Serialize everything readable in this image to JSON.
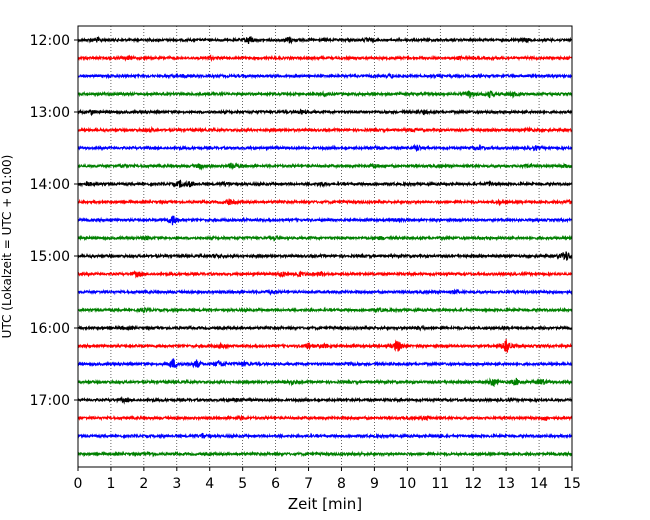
{
  "chart_data": {
    "type": "line",
    "title": "",
    "xlabel": "Zeit  [min]",
    "ylabel": "UTC (Lokalzeit = UTC + 01:00)",
    "xlim": [
      0,
      15
    ],
    "x_ticks": [
      0,
      1,
      2,
      3,
      4,
      5,
      6,
      7,
      8,
      9,
      10,
      11,
      12,
      13,
      14,
      15
    ],
    "y_ticks": [
      "12:00",
      "13:00",
      "14:00",
      "15:00",
      "16:00",
      "17:00"
    ],
    "grid": "vertical-dotted",
    "trace_colors": [
      "#000000",
      "#ff0000",
      "#0000ff",
      "#008000"
    ],
    "series": [
      {
        "start": "12:00",
        "events": [
          [
            0.6,
            2.2
          ],
          [
            5.2,
            4.5
          ],
          [
            6.4,
            3.5
          ],
          [
            8.8,
            2
          ],
          [
            13.6,
            1.8
          ]
        ]
      },
      {
        "start": "12:15",
        "events": [
          [
            1.5,
            1.6
          ],
          [
            4,
            1.5
          ],
          [
            11.6,
            1.5
          ]
        ]
      },
      {
        "start": "12:30",
        "events": [
          [
            3.2,
            1.4
          ],
          [
            9.5,
            1.5
          ]
        ]
      },
      {
        "start": "12:45",
        "events": [
          [
            7.5,
            1.5
          ],
          [
            11.9,
            4
          ],
          [
            12.5,
            3
          ],
          [
            13.2,
            2.5
          ]
        ]
      },
      {
        "start": "13:00",
        "events": [
          [
            0.4,
            2
          ],
          [
            6.8,
            1.8
          ],
          [
            10.5,
            1.6
          ]
        ]
      },
      {
        "start": "13:15",
        "events": [
          [
            2.2,
            1.4
          ],
          [
            10.2,
            1.5
          ],
          [
            13.7,
            1.6
          ]
        ]
      },
      {
        "start": "13:30",
        "events": [
          [
            9.1,
            2
          ],
          [
            10.3,
            3
          ],
          [
            12.2,
            2
          ],
          [
            13.9,
            2
          ]
        ]
      },
      {
        "start": "13:45",
        "events": [
          [
            1.4,
            1.8
          ],
          [
            3.7,
            2.5
          ],
          [
            4.7,
            3
          ],
          [
            9,
            2
          ],
          [
            13.6,
            1.6
          ],
          [
            14.8,
            2
          ]
        ]
      },
      {
        "start": "14:00",
        "events": [
          [
            0.3,
            2
          ],
          [
            3.1,
            3
          ],
          [
            3.4,
            2.5
          ],
          [
            4.5,
            2
          ],
          [
            7.4,
            2
          ],
          [
            12.5,
            1.5
          ]
        ]
      },
      {
        "start": "14:15",
        "events": [
          [
            4.6,
            2.5
          ],
          [
            12.8,
            1.8
          ],
          [
            14.9,
            1.5
          ]
        ]
      },
      {
        "start": "14:30",
        "events": [
          [
            2.9,
            6
          ],
          [
            9.6,
            1.3
          ]
        ]
      },
      {
        "start": "14:45",
        "events": [
          [
            2.1,
            1.5
          ],
          [
            6,
            1.3
          ],
          [
            9.2,
            1.3
          ]
        ]
      },
      {
        "start": "15:00",
        "events": [
          [
            4.2,
            1.5
          ],
          [
            14.8,
            6
          ]
        ]
      },
      {
        "start": "15:15",
        "events": [
          [
            1.8,
            2.5
          ],
          [
            6.2,
            2.5
          ],
          [
            6.7,
            3
          ],
          [
            7.4,
            2
          ]
        ]
      },
      {
        "start": "15:30",
        "events": [
          [
            5.8,
            1.8
          ],
          [
            11.5,
            1.4
          ]
        ]
      },
      {
        "start": "15:45",
        "events": [
          [
            2,
            1.3
          ],
          [
            9.2,
            1.2
          ]
        ]
      },
      {
        "start": "16:00",
        "events": [
          [
            10.4,
            1.8
          ],
          [
            1.4,
            1.4
          ]
        ]
      },
      {
        "start": "16:15",
        "events": [
          [
            4.4,
            2.5
          ],
          [
            7,
            3
          ],
          [
            7.5,
            2.5
          ],
          [
            9.7,
            6
          ],
          [
            13,
            8
          ]
        ]
      },
      {
        "start": "16:30",
        "events": [
          [
            2.9,
            5
          ],
          [
            3.6,
            4
          ],
          [
            4.3,
            3.5
          ],
          [
            5,
            2.5
          ],
          [
            8.2,
            1.5
          ]
        ]
      },
      {
        "start": "16:45",
        "events": [
          [
            6.5,
            1.5
          ],
          [
            12.6,
            4
          ],
          [
            13.3,
            3.5
          ],
          [
            14.1,
            3
          ]
        ]
      },
      {
        "start": "17:00",
        "events": [
          [
            1.4,
            1.4
          ],
          [
            4.8,
            1.5
          ]
        ]
      },
      {
        "start": "17:15",
        "events": [
          [
            4.9,
            1.8
          ],
          [
            10.6,
            2
          ],
          [
            14.2,
            1.6
          ]
        ]
      },
      {
        "start": "17:30",
        "events": [
          [
            3.8,
            2.5
          ],
          [
            11,
            1.3
          ]
        ]
      },
      {
        "start": "17:45",
        "events": [
          [
            2.2,
            1.2
          ],
          [
            8.5,
            1.2
          ]
        ]
      }
    ]
  }
}
